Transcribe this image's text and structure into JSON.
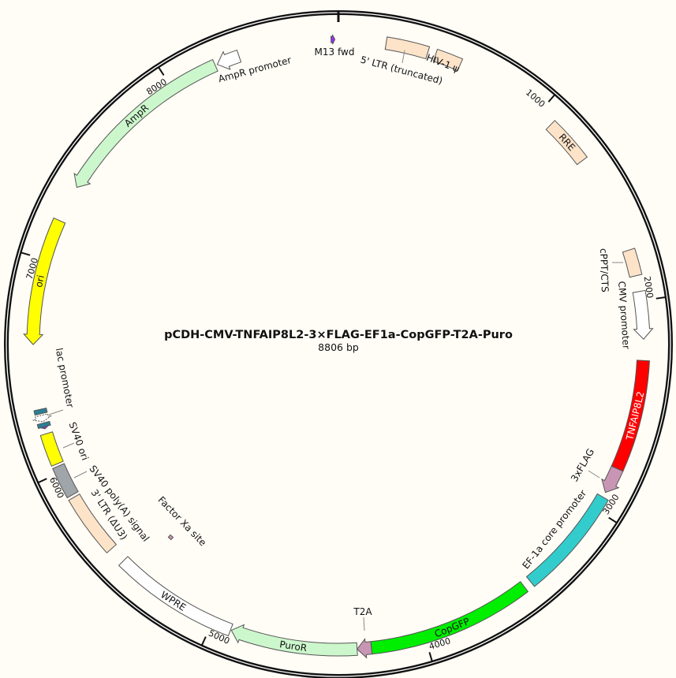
{
  "plasmid": {
    "name": "pCDH-CMV-TNFAIP8L2-3×FLAG-EF1a-CopGFP-T2A-Puro",
    "length_label": "8806 bp",
    "length": 8806
  },
  "ticks": [
    1000,
    2000,
    3000,
    4000,
    5000,
    6000,
    7000,
    8000
  ],
  "features": [
    {
      "id": "m13fwd",
      "label": "M13 fwd",
      "start": 8772,
      "end": 8790,
      "dir": 1,
      "shape": "primer",
      "color": "#9b2ff0",
      "track": "main"
    },
    {
      "id": "ltr5",
      "label": "5' LTR (truncated)",
      "start": 220,
      "end": 416,
      "dir": 0,
      "shape": "box",
      "color": "#fde3c8",
      "track": "main"
    },
    {
      "id": "psi",
      "label": "HIV-1 ψ",
      "start": 453,
      "end": 575,
      "dir": 0,
      "shape": "box",
      "color": "#fde3c8",
      "track": "main"
    },
    {
      "id": "rre",
      "label": "RRE",
      "start": 1076,
      "end": 1296,
      "dir": 0,
      "shape": "box",
      "color": "#fde3c8",
      "track": "main",
      "inside": true
    },
    {
      "id": "cppt",
      "label": "cPPT/CTS",
      "start": 1761,
      "end": 1883,
      "dir": 0,
      "shape": "box",
      "color": "#fde3c8",
      "track": "main"
    },
    {
      "id": "cmv",
      "label": "CMV promoter",
      "start": 1957,
      "end": 2177,
      "dir": 1,
      "shape": "arrow",
      "color": "#ffffff",
      "track": "main"
    },
    {
      "id": "tnf",
      "label": "TNFAIP8L2",
      "start": 2275,
      "end": 2789,
      "dir": 0,
      "shape": "box",
      "color": "#ff0000",
      "track": "main",
      "inside": true,
      "text_color": "#ffffff"
    },
    {
      "id": "flag",
      "label": "3xFLAG",
      "start": 2789,
      "end": 2911,
      "dir": 1,
      "shape": "arrow",
      "color": "#c896b4",
      "track": "main"
    },
    {
      "id": "ef1a",
      "label": "EF-1a core promoter",
      "start": 2935,
      "end": 3449,
      "dir": 0,
      "shape": "box",
      "color": "#33cccc",
      "track": "main"
    },
    {
      "id": "copgfp",
      "label": "CopGFP",
      "start": 3486,
      "end": 4251,
      "dir": 0,
      "shape": "box",
      "color": "#00ee00",
      "track": "main",
      "inside": true
    },
    {
      "id": "t2a",
      "label": "T2A",
      "start": 4251,
      "end": 4317,
      "dir": 1,
      "shape": "arrow",
      "color": "#c896b4",
      "track": "main"
    },
    {
      "id": "puror",
      "label": "PuroR",
      "start": 4317,
      "end": 4905,
      "dir": 1,
      "shape": "arrow",
      "color": "#ccf7cc",
      "track": "main",
      "inside": true
    },
    {
      "id": "wpre",
      "label": "WPRE",
      "start": 4909,
      "end": 5499,
      "dir": 0,
      "shape": "box",
      "color": "#ffffff",
      "track": "main",
      "inside": true
    },
    {
      "id": "fxa",
      "label": "Factor Xa site",
      "start": 5396,
      "end": 5416,
      "dir": 0,
      "shape": "site",
      "color": "#c896b4",
      "track": "inner"
    },
    {
      "id": "ltr3",
      "label": "3' LTR (ΔU3)",
      "start": 5577,
      "end": 5870,
      "dir": 0,
      "shape": "box",
      "color": "#fde3c8",
      "track": "main"
    },
    {
      "id": "sv40pa",
      "label": "SV40 poly(A) signal",
      "start": 5883,
      "end": 6030,
      "dir": 0,
      "shape": "box",
      "color": "#a0a5aa",
      "track": "main"
    },
    {
      "id": "sv40ori",
      "label": "SV40 ori",
      "start": 6042,
      "end": 6189,
      "dir": 0,
      "shape": "box",
      "color": "#ffff00",
      "track": "main"
    },
    {
      "id": "m13rev",
      "label": "",
      "start": 6212,
      "end": 6232,
      "dir": -1,
      "shape": "primer",
      "color": "#9b2ff0",
      "track": "main"
    },
    {
      "id": "lacop",
      "label": "",
      "start": 6222,
      "end": 6240,
      "dir": 0,
      "shape": "box",
      "color": "#2a7f96",
      "track": "main"
    },
    {
      "id": "lacpro",
      "label": "lac promoter",
      "start": 6246,
      "end": 6276,
      "dir": -1,
      "shape": "arrow",
      "color": "#ffffff",
      "track": "main",
      "dashed": true
    },
    {
      "id": "cap",
      "label": "",
      "start": 6284,
      "end": 6304,
      "dir": 0,
      "shape": "box",
      "color": "#2a7f96",
      "track": "main"
    },
    {
      "id": "ori",
      "label": "ori",
      "start": 6604,
      "end": 7191,
      "dir": -1,
      "shape": "arrow",
      "color": "#ffff00",
      "track": "main",
      "inside": true
    },
    {
      "id": "ampr",
      "label": "AmpR",
      "start": 7363,
      "end": 8224,
      "dir": -1,
      "shape": "arrow",
      "color": "#ccf7cc",
      "track": "main",
      "inside": true
    },
    {
      "id": "amprpro",
      "label": "AmpR promoter",
      "start": 8234,
      "end": 8341,
      "dir": -1,
      "shape": "arrow",
      "color": "#ffffff",
      "track": "main"
    }
  ]
}
